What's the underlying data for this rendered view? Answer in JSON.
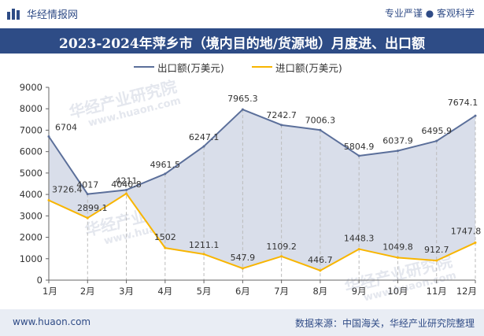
{
  "header": {
    "brand": "华经情报网",
    "tagline": "专业严谨 ● 客观科学"
  },
  "title": "2023-2024年萍乡市（境内目的地/货源地）月度进、出口额",
  "watermark": {
    "text_cn": "华经产业研究院",
    "text_url": "www.huaon.com"
  },
  "footer": {
    "website": "www.huaon.com",
    "source": "数据来源：中国海关，华经产业研究院整理"
  },
  "colors": {
    "export_line": "#5b6f9a",
    "export_fill": "#d9deea",
    "import_line": "#f8b500",
    "axis": "#666666",
    "grid": "#bbbbbb",
    "brand": "#2e4c86"
  },
  "chart_data": {
    "type": "area",
    "categories": [
      "1月",
      "2月",
      "3月",
      "4月",
      "5月",
      "6月",
      "7月",
      "8月",
      "9月",
      "10月",
      "11月",
      "12月"
    ],
    "series": [
      {
        "name": "出口额(万美元)",
        "values": [
          6704,
          4017,
          4211,
          4961.5,
          6247.1,
          7965.3,
          7242.7,
          7006.3,
          5804.9,
          6037.9,
          6495.9,
          7674.1
        ],
        "labels": [
          "6704",
          "4017",
          "4211",
          "4961.5",
          "6247.1",
          "7965.3",
          "7242.7",
          "7006.3",
          "5804.9",
          "6037.9",
          "6495.9",
          "7674.1"
        ]
      },
      {
        "name": "进口额(万美元)",
        "values": [
          3726.4,
          2899.1,
          4040.8,
          1502,
          1211.1,
          547.9,
          1109.2,
          446.7,
          1448.3,
          1049.8,
          912.7,
          1747.8
        ],
        "labels": [
          "3726.4",
          "2899.1",
          "4040.8",
          "1502",
          "1211.1",
          "547.9",
          "1109.2",
          "446.7",
          "1448.3",
          "1049.8",
          "912.7",
          "1747.8"
        ]
      }
    ],
    "ylim": [
      0,
      9000
    ],
    "yticks": [
      "0",
      "1000",
      "2000",
      "3000",
      "4000",
      "5000",
      "6000",
      "7000",
      "8000",
      "9000"
    ],
    "grid": "vertical dashed",
    "legend": "top-center"
  }
}
